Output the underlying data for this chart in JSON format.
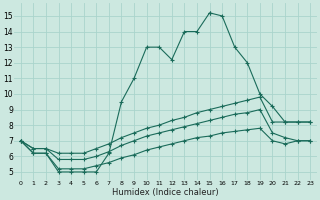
{
  "xlabel": "Humidex (Indice chaleur)",
  "xlim": [
    -0.5,
    23.5
  ],
  "ylim": [
    4.5,
    15.8
  ],
  "yticks": [
    5,
    6,
    7,
    8,
    9,
    10,
    11,
    12,
    13,
    14,
    15
  ],
  "xticks": [
    0,
    1,
    2,
    3,
    4,
    5,
    6,
    7,
    8,
    9,
    10,
    11,
    12,
    13,
    14,
    15,
    16,
    17,
    18,
    19,
    20,
    21,
    22,
    23
  ],
  "xtick_labels": [
    "0",
    "1",
    "2",
    "3",
    "4",
    "5",
    "6",
    "7",
    "8",
    "9",
    "10",
    "11",
    "12",
    "13",
    "14",
    "15",
    "16",
    "17",
    "18",
    "19",
    "20",
    "21",
    "22",
    "23"
  ],
  "bg_color": "#cce8e0",
  "line_color": "#1a6b5a",
  "grid_color": "#aad4cc",
  "lines": [
    {
      "x": [
        0,
        1,
        2,
        3,
        4,
        5,
        6,
        7,
        8,
        9,
        10,
        11,
        12,
        13,
        14,
        15,
        15,
        16,
        17,
        18,
        19,
        20,
        21,
        22,
        23
      ],
      "y": [
        7,
        6.2,
        6.2,
        5.0,
        5.0,
        5.0,
        5.0,
        6.2,
        9.5,
        11.0,
        13.0,
        13.0,
        12.2,
        14.0,
        14.0,
        15.2,
        15.2,
        15.0,
        13.0,
        12.0,
        10.0,
        9.2,
        8.2,
        8.2,
        8.2
      ]
    },
    {
      "x": [
        0,
        1,
        2,
        3,
        4,
        5,
        6,
        7,
        8,
        9,
        10,
        11,
        12,
        13,
        14,
        15,
        16,
        17,
        18,
        19,
        20,
        21,
        22,
        23
      ],
      "y": [
        7.0,
        6.5,
        6.5,
        6.2,
        6.2,
        6.2,
        6.5,
        6.8,
        7.2,
        7.5,
        7.8,
        8.0,
        8.3,
        8.5,
        8.8,
        9.0,
        9.2,
        9.4,
        9.6,
        9.8,
        8.2,
        8.2,
        8.2,
        8.2
      ]
    },
    {
      "x": [
        0,
        1,
        2,
        3,
        4,
        5,
        6,
        7,
        8,
        9,
        10,
        11,
        12,
        13,
        14,
        15,
        16,
        17,
        18,
        19,
        20,
        21,
        22,
        23
      ],
      "y": [
        7.0,
        6.5,
        6.5,
        5.8,
        5.8,
        5.8,
        6.0,
        6.3,
        6.7,
        7.0,
        7.3,
        7.5,
        7.7,
        7.9,
        8.1,
        8.3,
        8.5,
        8.7,
        8.8,
        9.0,
        7.5,
        7.2,
        7.0,
        7.0
      ]
    },
    {
      "x": [
        0,
        1,
        2,
        3,
        4,
        5,
        6,
        7,
        8,
        9,
        10,
        11,
        12,
        13,
        14,
        15,
        16,
        17,
        18,
        19,
        20,
        21,
        22,
        23
      ],
      "y": [
        7.0,
        6.2,
        6.2,
        5.2,
        5.2,
        5.2,
        5.4,
        5.6,
        5.9,
        6.1,
        6.4,
        6.6,
        6.8,
        7.0,
        7.2,
        7.3,
        7.5,
        7.6,
        7.7,
        7.8,
        7.0,
        6.8,
        7.0,
        7.0
      ]
    }
  ]
}
